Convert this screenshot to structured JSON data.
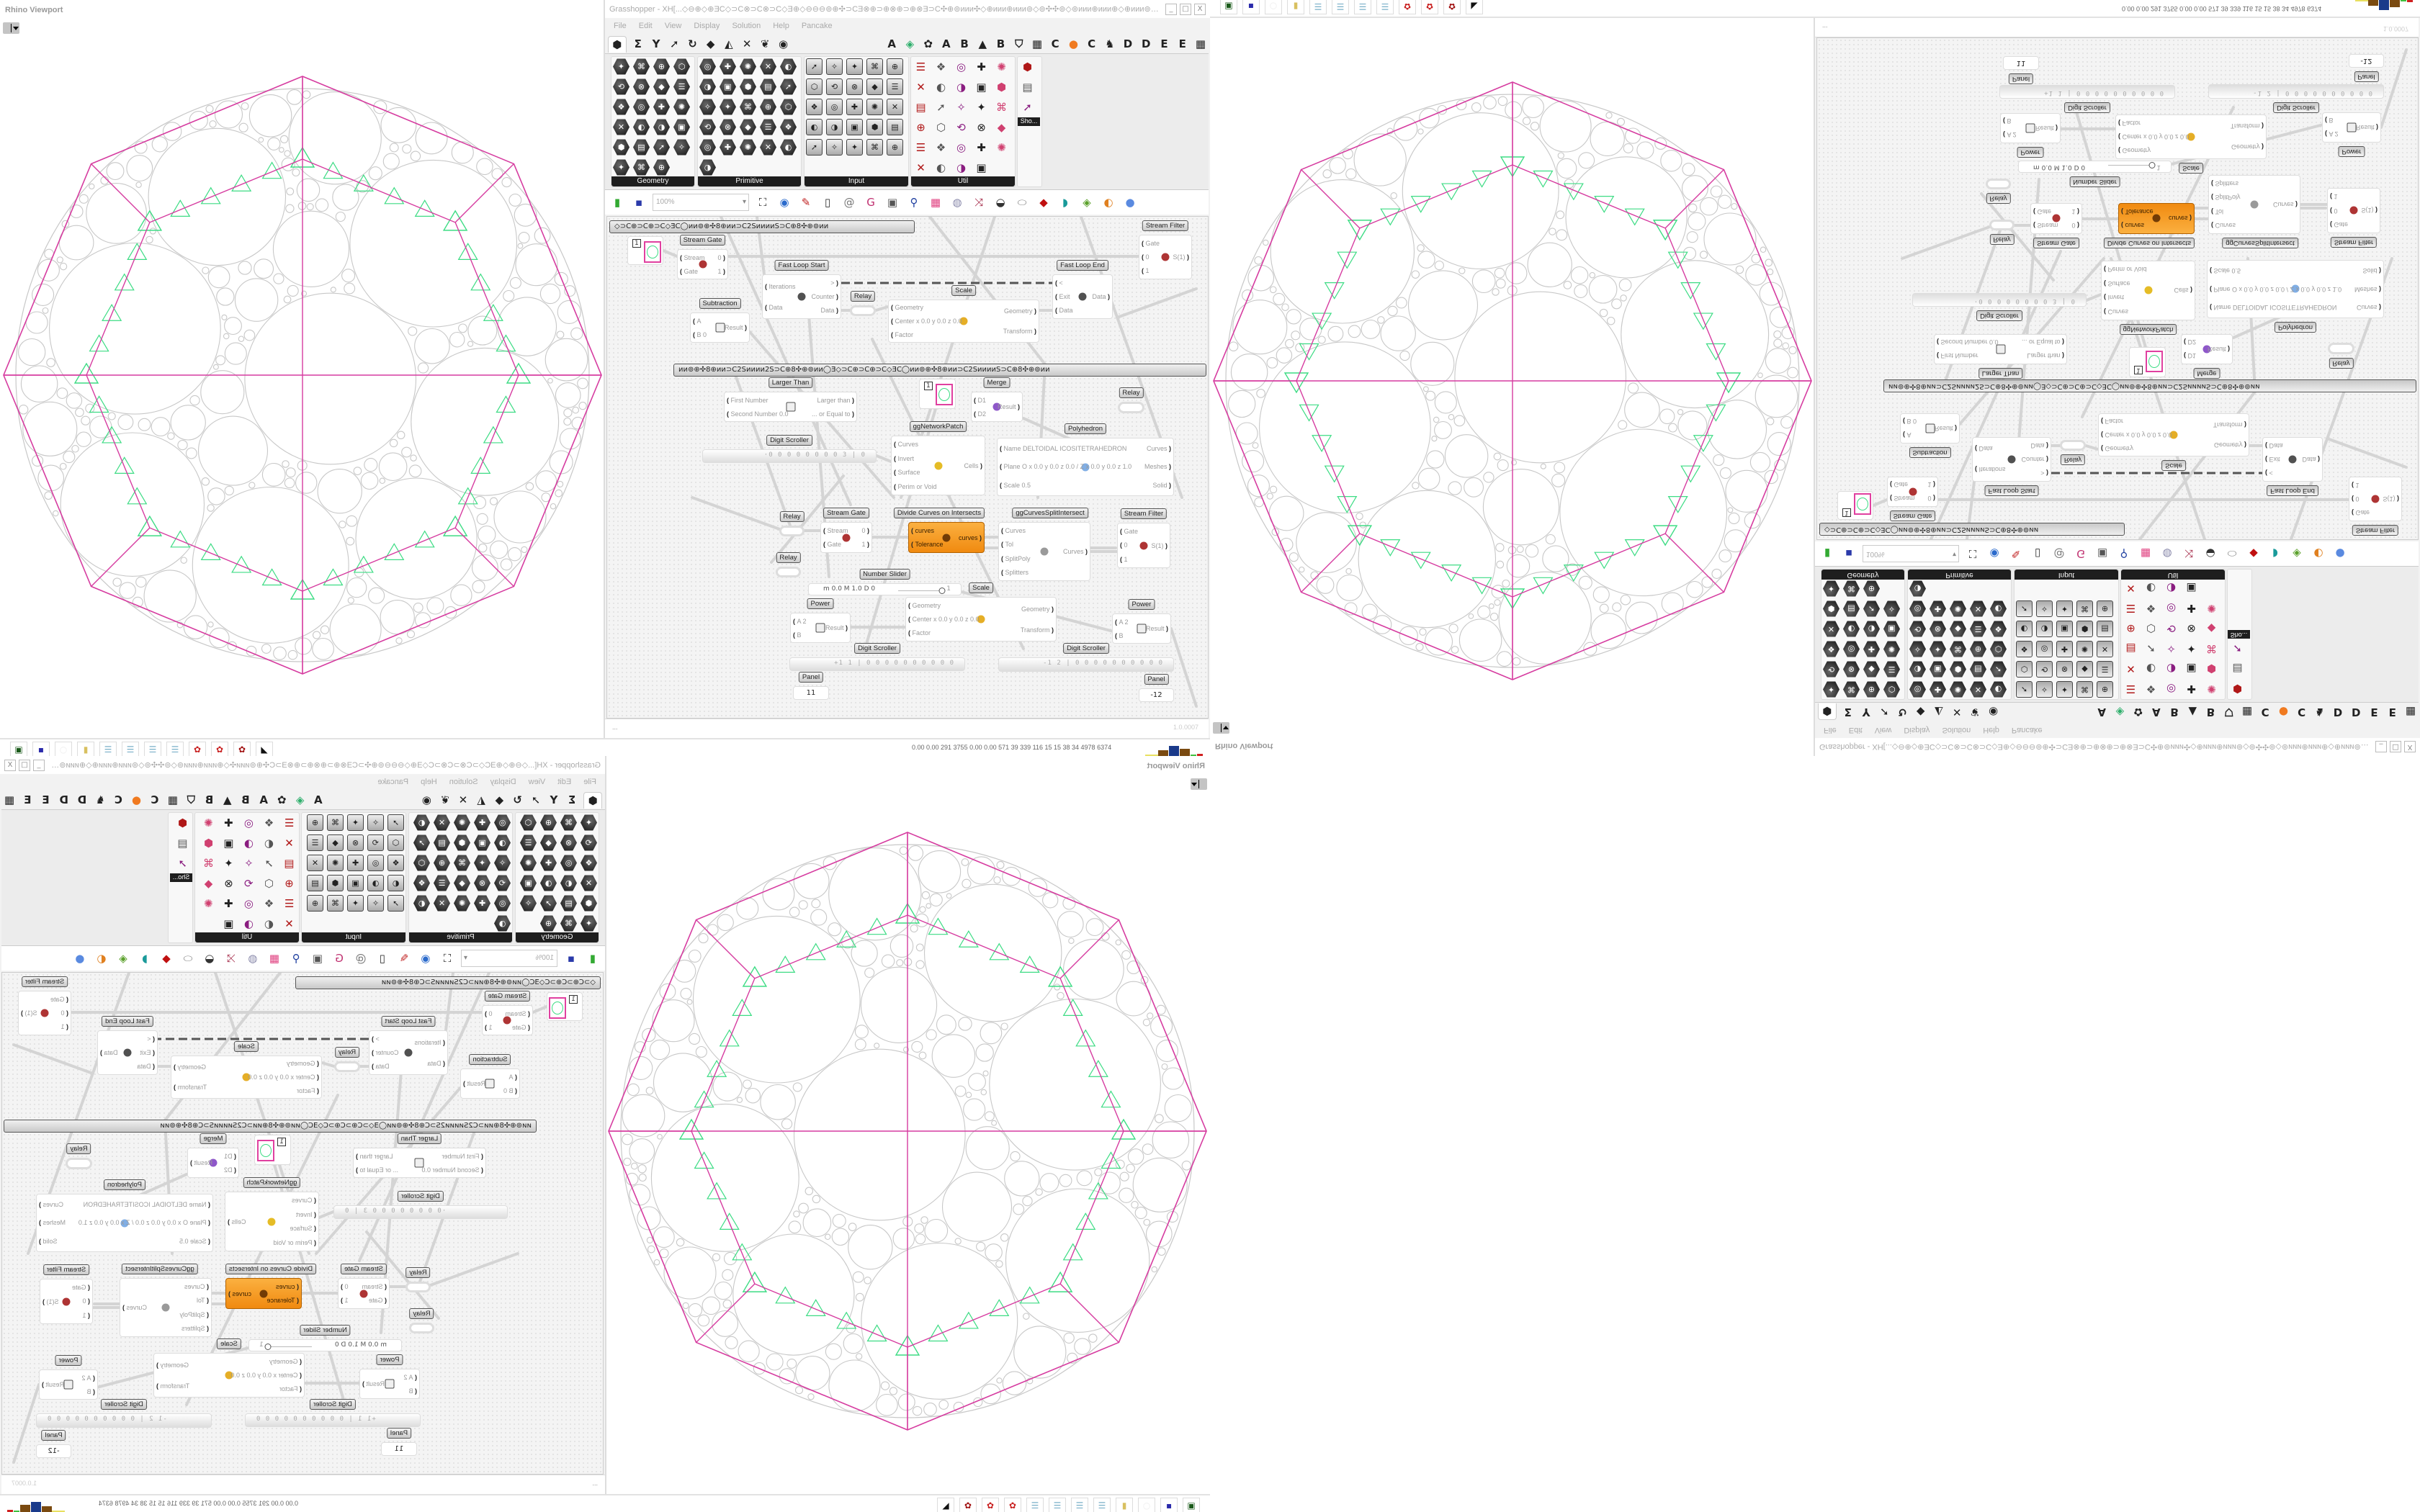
{
  "viewport": {
    "title": "Rhino Viewport",
    "colors": {
      "polyhedron_edges": "#d63ca0",
      "circles": "#c8c8c8",
      "mesh": "#3ddc84"
    }
  },
  "gh": {
    "title": "Grasshopper - XH[...◇⊖⊕◇⊕ƎC◇⊃C⊗⊃C⊗⊃C◇Ǝ⊕◇⊖⊖⊖⊚⊕✣⊃CƎ⊗⊕⊃⊕⊗⊕⊃⊕⊗Ǝ⊃C✣⊕⊚ᴎᴎᴎ✣◇⊕ᴎᴎᴎ⊕ᴎᴎᴎ⊚◇⊚✣✣⊚◇⊚ᴎᴎᴎ⊕ᴎᴎᴎ⊕◇⊕ᴎᴎᴎ⊚⊕✣⊃CƎ⊗⊕⊃⊗...",
    "window_controls": [
      "_",
      "□",
      "X"
    ],
    "menu": [
      "File",
      "Edit",
      "View",
      "Display",
      "Solution",
      "Help",
      "Pancake"
    ],
    "tabs": [
      {
        "icon": "params-tab-icon"
      },
      {
        "icon": "maths-tab-icon"
      },
      {
        "icon": "sets-tab-icon"
      },
      {
        "icon": "vector-tab-icon"
      },
      {
        "icon": "curve-tab-icon"
      },
      {
        "icon": "surface-tab-icon"
      },
      {
        "icon": "mesh-tab-icon"
      },
      {
        "icon": "intersect-tab-icon"
      },
      {
        "icon": "transform-tab-icon"
      },
      {
        "icon": "display-tab-icon"
      },
      {
        "label": "A"
      },
      {
        "icon": "leaf-tab-icon"
      },
      {
        "icon": "gear-tab-icon"
      },
      {
        "label": "A"
      },
      {
        "label": "B"
      },
      {
        "icon": "mountain-tab-icon"
      },
      {
        "label": "B"
      },
      {
        "icon": "shield-tab-icon"
      },
      {
        "icon": "grid-tab-icon"
      },
      {
        "label": "C"
      },
      {
        "icon": "orange-dot-tab-icon"
      },
      {
        "label": "C"
      },
      {
        "icon": "chicken-tab-icon"
      },
      {
        "label": "D"
      },
      {
        "label": "D"
      },
      {
        "label": "E"
      },
      {
        "label": "E"
      },
      {
        "icon": "grid-tab-icon"
      }
    ],
    "panels": [
      {
        "label": "Geometry",
        "icons": [
          "box",
          "line",
          "point",
          "spiral",
          "circle-x",
          "surface",
          "brep",
          "field",
          "vector",
          "plane",
          "text-tag",
          "transform",
          "circle",
          "box-3d",
          "mesh",
          "cloud",
          "arc",
          "cube",
          "pattern",
          "graph",
          "coil",
          "grid",
          "magnet"
        ]
      },
      {
        "label": "Primitive",
        "icons": [
          "boolean",
          "path",
          "matrix",
          "angle",
          "domain",
          "shape",
          "arrow",
          "time",
          "color",
          "lock",
          "scissors",
          "data",
          "hatch",
          "shade",
          "integer",
          "crosshair",
          "tree",
          "leaf",
          "number",
          "hash",
          "complex",
          "file",
          "text",
          "id",
          "sphere",
          "gradient"
        ]
      },
      {
        "label": "Input",
        "icons": [
          "import",
          "button",
          "gradient-3d",
          "3dm",
          "read-file",
          "graph-mapper",
          "gumball",
          "value-list",
          "xyz",
          "toggle",
          "colour-swatch",
          "colour-wheel",
          "img",
          "knob",
          "checker",
          "curve-map",
          "pdb",
          "jump",
          "calendar",
          "control-knob",
          "shp",
          "list",
          "clock",
          "palette",
          "id-tag"
        ]
      },
      {
        "label": "Util",
        "icons": [
          "cherry",
          "galapagos",
          "arrow",
          "csharp",
          "label",
          "play",
          "record",
          "zoom",
          "spiral",
          "sphere-pink",
          "axes",
          "pencil",
          "timer",
          "seven",
          "flask",
          "tree",
          "list-select",
          "egg",
          "script",
          "fx",
          "ring",
          "loop",
          "premiere",
          "number-01",
          "palette-ball",
          "abc",
          "arrow-right",
          "gauge",
          "cross"
        ]
      },
      {
        "label": "Sho...",
        "icons": [
          "headset",
          "headset",
          "presentation"
        ]
      }
    ],
    "toolbar": {
      "zoom": "100%",
      "icons": [
        "new-file-icon",
        "save-icon",
        "zoom-extents-icon",
        "preview-eye-icon",
        "sketch-icon",
        "bake-icon",
        "email-icon",
        "gha-icon",
        "render-icon",
        "search-icon",
        "package-icon",
        "bulb-icon",
        "swap-icon",
        "shape-icon",
        "link-icon",
        "ruby-icon",
        "teal-shape-icon",
        "green-shape-icon",
        "ball-icon",
        "sphere-icon"
      ]
    },
    "groups": [
      "◇⊃C⊕⊃C⊕⊃C◇ƎC◯ᴎᴎ⊚⊕✣8⊕ᴎᴎ⊃C2SᴎᴎᴎᴎS⊃C⊕8✣⊕⊚ᴎᴎ",
      "ᴎᴎ⊚⊕✣8⊕ᴎᴎ⊃C2Sᴎᴎᴎᴎ2S⊃C⊕8✣⊕⊚ᴎᴎ◯Ǝ◇⊃C⊕⊃C⊕⊃C◇ƎC◯ᴎᴎ⊚⊕✣8⊕ᴎᴎ⊃C2SᴎᴎᴎᴎS⊃C⊕8✣⊕⊚ᴎᴎ"
    ],
    "components": [
      {
        "kind": "preview",
        "value": "1"
      },
      {
        "kind": "std",
        "title": "Stream Gate",
        "inputs": [
          "Stream",
          "Gate"
        ],
        "outputs": [
          "0",
          "1"
        ],
        "icon": "stream-gate-icon"
      },
      {
        "kind": "std",
        "title": "Fast Loop Start",
        "inputs": [
          "Iterations",
          "Data"
        ],
        "outputs": [
          ">",
          "Counter",
          "Data"
        ],
        "icon": "loop-start-icon"
      },
      {
        "kind": "relay",
        "title": "Relay"
      },
      {
        "kind": "std",
        "title": "Scale",
        "inputs": [
          "Geometry",
          "Center x 0.0 y 0.0 z 0.0",
          "Factor"
        ],
        "outputs": [
          "Geometry",
          "Transform"
        ],
        "icon": "scale-icon"
      },
      {
        "kind": "std",
        "title": "Fast Loop End",
        "inputs": [
          "<",
          "Exit",
          "Data"
        ],
        "outputs": [
          "Data"
        ],
        "icon": "loop-end-icon"
      },
      {
        "kind": "std",
        "title": "Stream Filter",
        "inputs": [
          "Gate",
          "0",
          "1"
        ],
        "outputs": [
          "S(1)"
        ],
        "icon": "stream-filter-icon"
      },
      {
        "kind": "std",
        "title": "Subtraction",
        "inputs": [
          "A",
          "B 0"
        ],
        "outputs": [
          "Result"
        ],
        "icon": "minus-icon"
      },
      {
        "kind": "std",
        "title": "Larger Than",
        "inputs": [
          "First Number",
          "Second Number 0.0"
        ],
        "outputs": [
          "Larger than",
          "... or Equal to"
        ],
        "icon": "greater-than-icon"
      },
      {
        "kind": "preview",
        "value": "1"
      },
      {
        "kind": "std",
        "title": "Merge",
        "inputs": [
          "D1",
          "D2"
        ],
        "outputs": [
          "Result"
        ],
        "icon": "merge-icon"
      },
      {
        "kind": "relay",
        "title": "Relay"
      },
      {
        "kind": "std",
        "title": "ggNetworkPatch",
        "inputs": [
          "Curves",
          "Invert",
          "Surface",
          "Perim or Void"
        ],
        "outputs": [
          "Cells"
        ],
        "icon": "network-patch-icon"
      },
      {
        "kind": "std",
        "title": "Polyhedron",
        "inputs": [
          "Name DELTOIDAL ICOSITETRAHEDRON",
          "Plane O x 0.0 y 0.0 z 0.0 / Z x 0.0 y 0.0 z 1.0",
          "Scale 0.5"
        ],
        "outputs": [
          "Curves",
          "Meshes",
          "Solid"
        ],
        "icon": "polyhedron-icon"
      },
      {
        "kind": "scroller",
        "title": "Digit Scroller",
        "value": "·0 0 0 0 0 0 0 0 3 | 0"
      },
      {
        "kind": "relay",
        "title": "Relay"
      },
      {
        "kind": "relay",
        "title": "Relay"
      },
      {
        "kind": "std",
        "title": "Stream Gate",
        "inputs": [
          "Stream",
          "Gate"
        ],
        "outputs": [
          "0",
          "1"
        ],
        "icon": "stream-gate-icon"
      },
      {
        "kind": "orange",
        "title": "Divide Curves on Intersects",
        "inputs": [
          "curves",
          "Tolerance"
        ],
        "outputs": [
          "curves"
        ],
        "icon": "divide-curves-icon"
      },
      {
        "kind": "std",
        "title": "ggCurvesSplitIntersect",
        "inputs": [
          "Curves",
          "Tol",
          "SplitPoly",
          "Splitters"
        ],
        "outputs": [
          "Curves"
        ],
        "icon": "split-intersect-icon"
      },
      {
        "kind": "std",
        "title": "Stream Filter",
        "inputs": [
          "Gate",
          "0",
          "1"
        ],
        "outputs": [
          "S(1)"
        ],
        "icon": "stream-filter-icon"
      },
      {
        "kind": "slider",
        "title": "Number Slider",
        "params": "m 0.0  M 1.0  D 0",
        "value": "1",
        "fraction": 1.0
      },
      {
        "kind": "std",
        "title": "Scale",
        "inputs": [
          "Geometry",
          "Center x 0.0 y 0.0 z 0.0",
          "Factor"
        ],
        "outputs": [
          "Geometry",
          "Transform"
        ],
        "icon": "scale-icon"
      },
      {
        "kind": "std",
        "title": "Power",
        "inputs": [
          "A 2",
          "B"
        ],
        "outputs": [
          "Result"
        ],
        "icon": "power-icon"
      },
      {
        "kind": "std",
        "title": "Power",
        "inputs": [
          "A 2",
          "B"
        ],
        "outputs": [
          "Result"
        ],
        "icon": "power-icon"
      },
      {
        "kind": "scroller",
        "title": "Digit Scroller",
        "value": "+1 1 | 0 0 0 0 0 0 0 0 0 0"
      },
      {
        "kind": "scroller",
        "title": "Digit Scroller",
        "value": "-1 2 | 0 0 0 0 0 0 0 0 0 0"
      },
      {
        "kind": "panel",
        "title": "Panel",
        "value": "11"
      },
      {
        "kind": "panel",
        "title": "Panel",
        "value": "-12"
      }
    ],
    "status": {
      "left": "...",
      "version": "1.0.0007"
    }
  },
  "taskbar": {
    "icons": [
      "monitor-icon",
      "floppy-64-icon",
      "blank-icon",
      "folder-icon",
      "notepad-icon",
      "notepad-icon",
      "notepad-icon",
      "notepad-icon",
      "red-app-icon",
      "red-app-icon",
      "red-3ds-icon",
      "wolf-icon"
    ],
    "perf": "0.00 0.00 291 3755 0.00 0.00 571  39  339  116  15  15  38  34  4978 6374"
  }
}
